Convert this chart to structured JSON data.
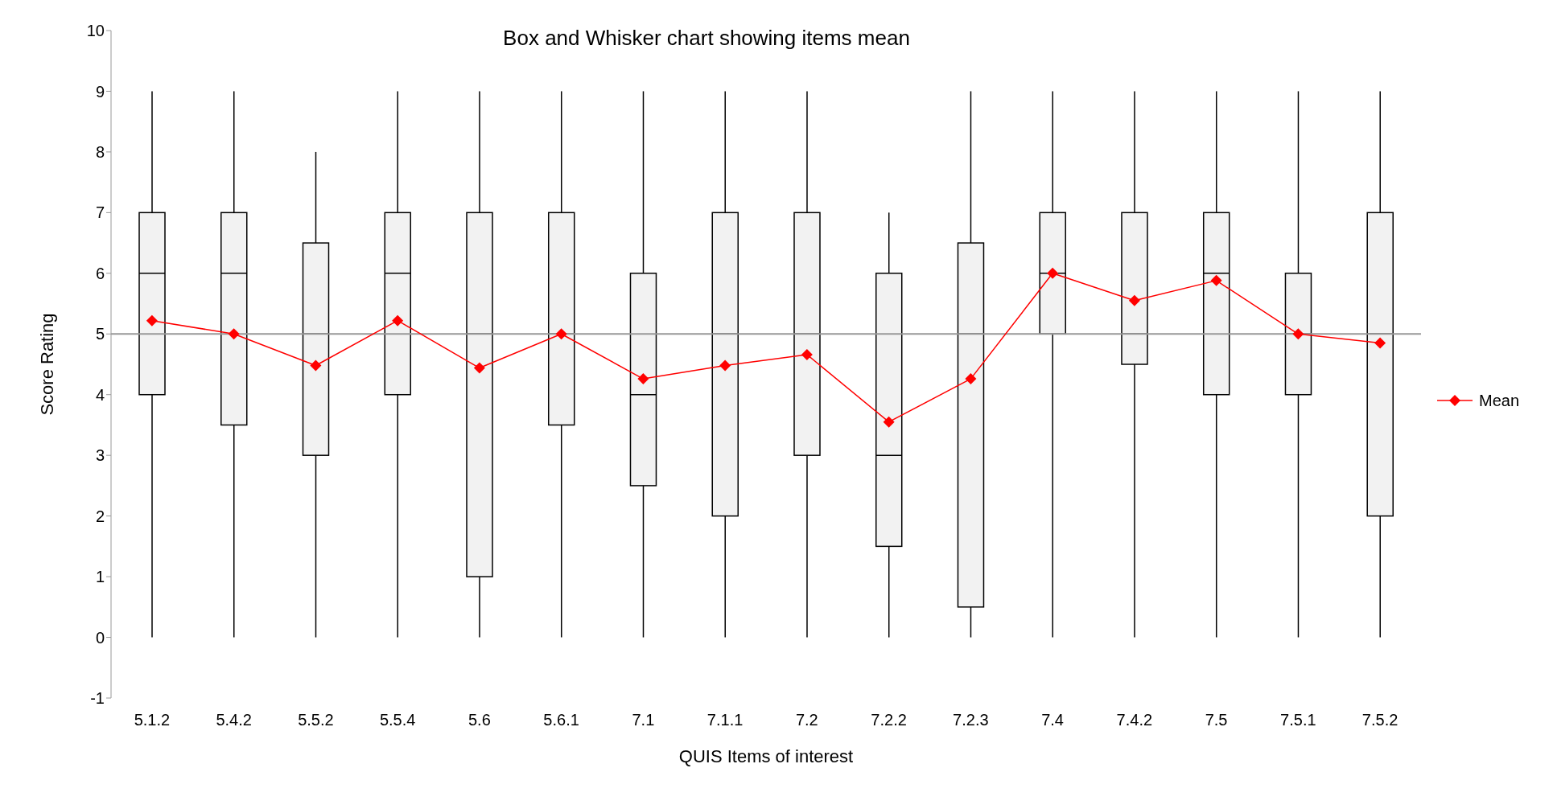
{
  "chart_data": {
    "type": "box",
    "title": "Box and Whisker chart showing items mean",
    "xlabel": "QUIS Items of interest",
    "ylabel": "Score Rating",
    "categories": [
      "5.1.2",
      "5.4.2",
      "5.5.2",
      "5.5.4",
      "5.6",
      "5.6.1",
      "7.1",
      "7.1.1",
      "7.2",
      "7.2.2",
      "7.2.3",
      "7.4",
      "7.4.2",
      "7.5",
      "7.5.1",
      "7.5.2"
    ],
    "boxes": [
      {
        "low": 0,
        "q1": 4,
        "median": 6,
        "q3": 7,
        "high": 9
      },
      {
        "low": 0,
        "q1": 3.5,
        "median": 6,
        "q3": 7,
        "high": 9
      },
      {
        "low": 0,
        "q1": 3,
        "median": 5,
        "q3": 6.5,
        "high": 8
      },
      {
        "low": 0,
        "q1": 4,
        "median": 6,
        "q3": 7,
        "high": 9
      },
      {
        "low": 0,
        "q1": 1,
        "median": 5,
        "q3": 7,
        "high": 9
      },
      {
        "low": 0,
        "q1": 3.5,
        "median": 5,
        "q3": 7,
        "high": 9
      },
      {
        "low": 0,
        "q1": 2.5,
        "median": 4,
        "q3": 6,
        "high": 9
      },
      {
        "low": 0,
        "q1": 2,
        "median": 5,
        "q3": 7,
        "high": 9
      },
      {
        "low": 0,
        "q1": 3,
        "median": 5,
        "q3": 7,
        "high": 9
      },
      {
        "low": 0,
        "q1": 1.5,
        "median": 3,
        "q3": 6,
        "high": 7
      },
      {
        "low": 0,
        "q1": 0.5,
        "median": 5,
        "q3": 6.5,
        "high": 9
      },
      {
        "low": 0,
        "q1": 5,
        "median": 6,
        "q3": 7,
        "high": 9
      },
      {
        "low": 0,
        "q1": 4.5,
        "median": 5,
        "q3": 7,
        "high": 9
      },
      {
        "low": 0,
        "q1": 4,
        "median": 6,
        "q3": 7,
        "high": 9
      },
      {
        "low": 0,
        "q1": 4,
        "median": 5,
        "q3": 6,
        "high": 9
      },
      {
        "low": 0,
        "q1": 2,
        "median": 5,
        "q3": 7,
        "high": 9
      }
    ],
    "color": "#f2f2f2",
    "series": [
      {
        "name": "Mean",
        "type": "line",
        "color": "#ff0000",
        "values": [
          5.22,
          5.0,
          4.48,
          5.22,
          4.44,
          5.0,
          4.26,
          4.48,
          4.66,
          3.55,
          4.26,
          6.0,
          5.55,
          5.88,
          5.0,
          4.85
        ]
      }
    ],
    "marker": "diamond",
    "line_style": "solid",
    "ylim": [
      -1,
      10
    ],
    "yticks": [
      -1,
      0,
      1,
      2,
      3,
      4,
      5,
      6,
      7,
      8,
      9,
      10
    ],
    "ref_lines": [
      {
        "axis": "y",
        "value": 5,
        "label": null,
        "color": "#999999"
      }
    ],
    "grid": false,
    "legend": "right"
  }
}
